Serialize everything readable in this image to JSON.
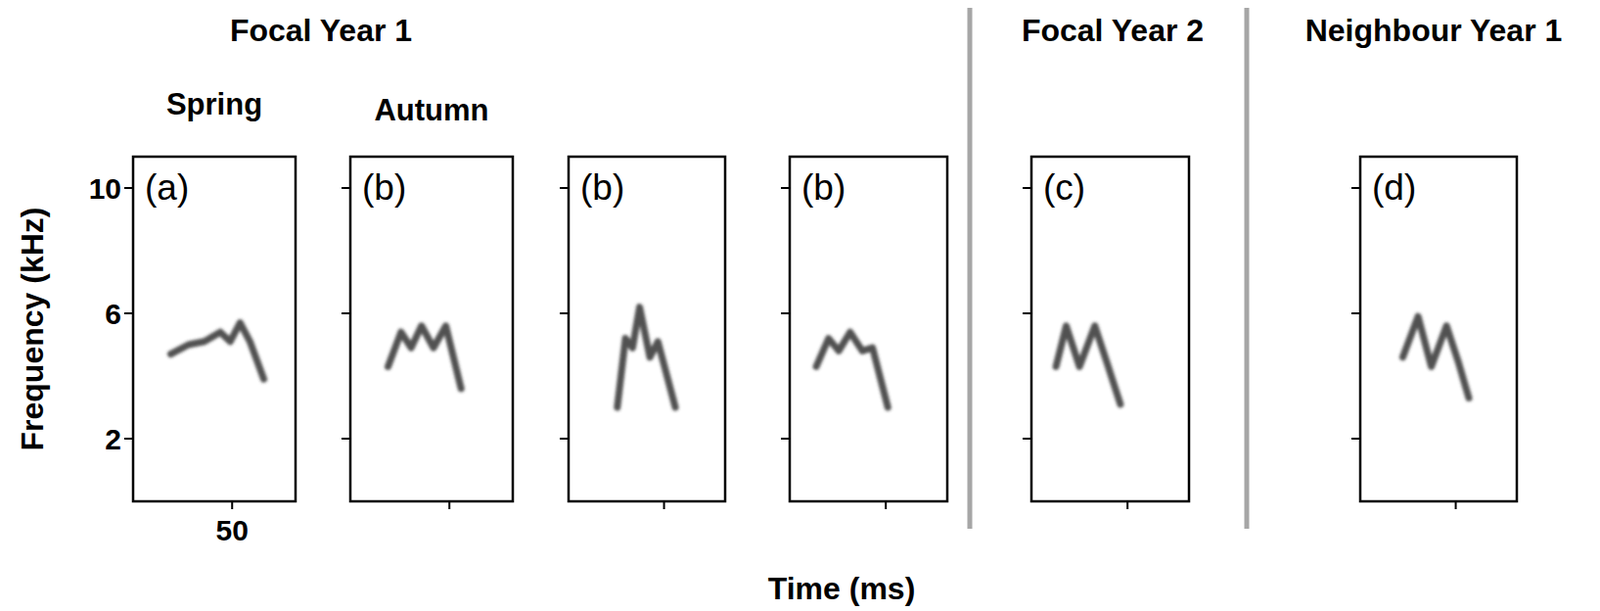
{
  "figure": {
    "groups": [
      "Focal Year 1",
      "Focal Year 2",
      "Neighbour Year 1"
    ],
    "x_label": "Time (ms)"
  },
  "chart_data": [
    {
      "type": "line",
      "title": "(a)",
      "subtitle": "Spring",
      "y_label": "Frequency (kHz)",
      "xlim": [
        0,
        82
      ],
      "ylim": [
        0,
        11
      ],
      "xticks": [
        50
      ],
      "yticks": [
        2,
        6,
        10
      ],
      "color": "#333333",
      "x": [
        19,
        28,
        36,
        44,
        49,
        54,
        59,
        66
      ],
      "values": [
        4.7,
        5.0,
        5.1,
        5.4,
        5.1,
        5.7,
        5.1,
        3.9
      ]
    },
    {
      "type": "line",
      "title": "(b)",
      "subtitle": "Autumn",
      "tick_labels": false,
      "xlim": [
        0,
        82
      ],
      "ylim": [
        0,
        11
      ],
      "xticks": [
        50
      ],
      "yticks": [
        2,
        6,
        10
      ],
      "color": "#333333",
      "x": [
        19,
        25.6,
        30.7,
        35.9,
        42,
        48.2,
        55.9
      ],
      "values": [
        4.3,
        5.4,
        4.9,
        5.6,
        4.9,
        5.6,
        3.6
      ]
    },
    {
      "type": "line",
      "title": "(b)",
      "tick_labels": false,
      "xlim": [
        0,
        82
      ],
      "ylim": [
        0,
        11
      ],
      "xticks": [
        50
      ],
      "yticks": [
        2,
        6,
        10
      ],
      "color": "#333333",
      "x": [
        25.5,
        29.8,
        33.5,
        37.2,
        42.6,
        46.8,
        55.9
      ],
      "values": [
        3.0,
        5.2,
        4.9,
        6.2,
        4.6,
        5.1,
        3.0
      ]
    },
    {
      "type": "line",
      "title": "(b)",
      "tick_labels": false,
      "xlim": [
        0,
        82
      ],
      "ylim": [
        0,
        11
      ],
      "xticks": [
        50
      ],
      "yticks": [
        2,
        6,
        10
      ],
      "color": "#333333",
      "x": [
        13.8,
        20.2,
        25.5,
        31.4,
        37.8,
        43.1,
        51.1
      ],
      "values": [
        4.3,
        5.2,
        4.8,
        5.4,
        4.8,
        4.9,
        3.0
      ]
    },
    {
      "type": "line",
      "title": "(c)",
      "tick_labels": false,
      "xlim": [
        0,
        82
      ],
      "ylim": [
        0,
        11
      ],
      "xticks": [
        50
      ],
      "yticks": [
        2,
        6,
        10
      ],
      "color": "#333333",
      "x": [
        12.8,
        18.1,
        25,
        33,
        39.4,
        46.3
      ],
      "values": [
        4.3,
        5.6,
        4.3,
        5.6,
        4.4,
        3.1
      ]
    },
    {
      "type": "line",
      "title": "(d)",
      "tick_labels": false,
      "xlim": [
        0,
        82
      ],
      "ylim": [
        0,
        11
      ],
      "xticks": [
        50
      ],
      "yticks": [
        2,
        6,
        10
      ],
      "color": "#333333",
      "x": [
        22.3,
        30.3,
        37.2,
        45.2,
        51.6,
        56.9
      ],
      "values": [
        4.6,
        5.9,
        4.3,
        5.6,
        4.4,
        3.3
      ]
    }
  ]
}
